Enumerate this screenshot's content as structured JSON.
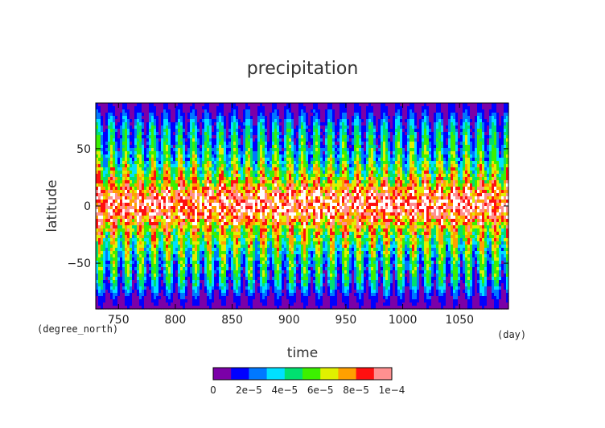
{
  "chart_data": {
    "type": "heatmap",
    "title": "precipitation",
    "xlabel": "time",
    "ylabel": "latitude",
    "x_unit": "(day)",
    "y_unit": "(degree_north)",
    "xlim": [
      730,
      1093
    ],
    "ylim": [
      -90,
      90
    ],
    "x_ticks": [
      750,
      800,
      850,
      900,
      950,
      1000,
      1050
    ],
    "y_ticks": [
      -50,
      0,
      50
    ],
    "x_tick_labels": [
      "750",
      "800",
      "850",
      "900",
      "950",
      "1000",
      "1050"
    ],
    "y_tick_labels": [
      "−50",
      "0",
      "50"
    ],
    "colorbar": {
      "levels": [
        0,
        1e-05,
        2e-05,
        3e-05,
        4e-05,
        5e-05,
        6e-05,
        7e-05,
        8e-05,
        9e-05,
        0.0001
      ],
      "colors": [
        "#7b00a8",
        "#0000ff",
        "#0078ff",
        "#00e0ff",
        "#00e070",
        "#3cf000",
        "#e0f000",
        "#ffa000",
        "#ff1010",
        "#ff9090"
      ],
      "tick_labels": [
        "0",
        "2e−5",
        "4e−5",
        "6e−5",
        "8e−5",
        "1e−4"
      ]
    },
    "pattern": {
      "description_values": {
        "mean_profile_by_latitude": [
          [
            -90,
            5e-06
          ],
          [
            -80,
            1.2e-05
          ],
          [
            -70,
            2.6e-05
          ],
          [
            -60,
            3.4e-05
          ],
          [
            -50,
            3.8e-05
          ],
          [
            -40,
            4.6e-05
          ],
          [
            -30,
            5.6e-05
          ],
          [
            -20,
            6.8e-05
          ],
          [
            -10,
            8.4e-05
          ],
          [
            0,
            9.6e-05
          ],
          [
            10,
            8.8e-05
          ],
          [
            20,
            7e-05
          ],
          [
            30,
            5.6e-05
          ],
          [
            40,
            4.4e-05
          ],
          [
            50,
            3.6e-05
          ],
          [
            60,
            3.2e-05
          ],
          [
            70,
            2.6e-05
          ],
          [
            80,
            1.4e-05
          ],
          [
            90,
            6e-06
          ]
        ],
        "oscillation_period_days": 12
      }
    }
  }
}
